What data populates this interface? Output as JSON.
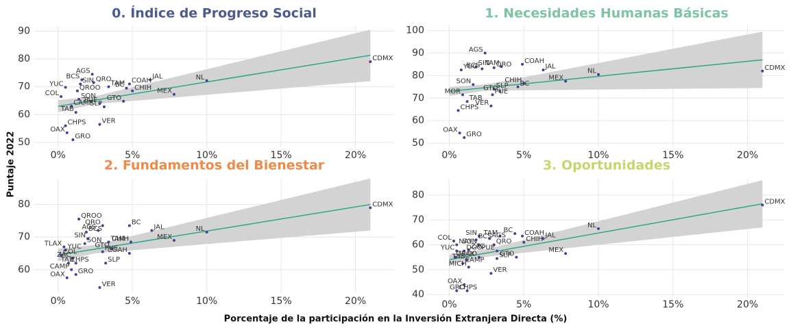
{
  "ylabel": "Puntaje 2022",
  "xlabel": "Porcentaje de la participación en la Inversión Extranjera Directa (%)",
  "chart_data": [
    {
      "type": "scatter",
      "title": "0. Índice de Progreso Social",
      "title_color": "#4b5b8e",
      "color": "#4b3f8f",
      "labels": [
        "CDMX",
        "NL",
        "JAL",
        "MEX",
        "COAH",
        "BC",
        "CHIH",
        "GTO",
        "TAM",
        "SLP",
        "VER",
        "AGS",
        "QRO",
        "BCS",
        "SIN",
        "YUC",
        "QROO",
        "COL",
        "SON",
        "PUE",
        "CAMP",
        "TAB",
        "CHPS",
        "OAX",
        "GRO"
      ],
      "x": [
        21.0,
        10.0,
        6.2,
        7.8,
        4.8,
        4.6,
        5.0,
        4.4,
        3.4,
        3.1,
        2.8,
        2.3,
        2.4,
        1.6,
        1.5,
        0.5,
        1.3,
        0.2,
        1.4,
        2.8,
        0.9,
        1.2,
        0.5,
        0.6,
        1.0
      ],
      "y": [
        79.0,
        72.2,
        72.5,
        67.3,
        71.0,
        69.5,
        68.5,
        64.8,
        70.0,
        62.8,
        56.5,
        74.5,
        71.5,
        72.5,
        71.0,
        69.8,
        68.5,
        66.5,
        65.5,
        64.0,
        63.0,
        60.8,
        56.0,
        53.5,
        51.0
      ],
      "trend": {
        "x": [
          0,
          2.5,
          21
        ],
        "fit": [
          63.0,
          65.2,
          81.3
        ],
        "lower": [
          60.8,
          63.8,
          72.0
        ],
        "upper": [
          65.2,
          66.6,
          90.5
        ],
        "color": "#2ca58d",
        "band_color": "#d3d3d3"
      },
      "xlim": [
        -1.6,
        22.6
      ],
      "ylim": [
        48.3,
        91.8
      ],
      "xticks": [
        {
          "value": 0,
          "label": "0%"
        },
        {
          "value": 5,
          "label": "5%"
        },
        {
          "value": 10,
          "label": "10%"
        },
        {
          "value": 15,
          "label": "15%"
        },
        {
          "value": 20,
          "label": "20%"
        }
      ],
      "yticks": [
        50,
        60,
        70,
        80,
        90
      ],
      "grid": true
    },
    {
      "type": "scatter",
      "title": "1. Necesidades Humanas Básicas",
      "title_color": "#7cc4a4",
      "color": "#4b3f8f",
      "labels": [
        "CDMX",
        "NL",
        "JAL",
        "MEX",
        "COAH",
        "CHIH",
        "BC",
        "TAM",
        "QRO",
        "AGS",
        "SIN",
        "BCS",
        "YUC",
        "SON",
        "SLP",
        "GTO",
        "PUE",
        "MOR",
        "TAB",
        "VER",
        "CHPS",
        "OAX",
        "GRO"
      ],
      "x": [
        21.0,
        10.0,
        6.3,
        7.8,
        4.9,
        5.0,
        4.6,
        3.5,
        3.0,
        2.4,
        1.8,
        2.2,
        0.8,
        1.6,
        3.0,
        3.4,
        2.9,
        0.9,
        1.2,
        2.8,
        0.6,
        0.7,
        1.0
      ],
      "y": [
        82.0,
        80.5,
        82.5,
        77.5,
        85.0,
        76.5,
        75.0,
        84.0,
        83.5,
        90.0,
        84.0,
        83.0,
        82.5,
        76.0,
        74.0,
        73.0,
        71.5,
        71.5,
        68.5,
        66.5,
        64.5,
        54.5,
        52.5
      ],
      "trend": {
        "x": [
          0,
          2.5,
          21
        ],
        "fit": [
          73.0,
          74.7,
          87.0
        ],
        "lower": [
          71.0,
          73.3,
          74.5
        ],
        "upper": [
          75.0,
          76.1,
          99.5
        ],
        "color": "#2ca58d",
        "band_color": "#d3d3d3"
      },
      "xlim": [
        -1.4,
        22.5
      ],
      "ylim": [
        48.2,
        102.0
      ],
      "xticks": [
        {
          "value": 0,
          "label": "0%"
        },
        {
          "value": 5,
          "label": "5%"
        },
        {
          "value": 10,
          "label": "10%"
        },
        {
          "value": 15,
          "label": "15%"
        },
        {
          "value": 20,
          "label": "20%"
        }
      ],
      "yticks": [
        50,
        60,
        70,
        80,
        90,
        100
      ],
      "grid": true
    },
    {
      "type": "scatter",
      "title": "2. Fundamentos del Bienestar",
      "title_color": "#ef8a47",
      "color": "#4b3f8f",
      "labels": [
        "CDMX",
        "NL",
        "JAL",
        "MEX",
        "QROO",
        "QRO",
        "BC",
        "AGS",
        "BCS",
        "SIN",
        "TAM",
        "CHIH",
        "SON",
        "TLAX",
        "YUC",
        "GTO",
        "PUE",
        "COAH",
        "COL",
        "ZAC",
        "CHPS",
        "TAB",
        "SLP",
        "CAMP",
        "GRO",
        "OAX",
        "VER"
      ],
      "x": [
        21.0,
        10.0,
        6.3,
        7.8,
        1.4,
        3.0,
        4.8,
        2.7,
        1.9,
        2.0,
        3.4,
        4.9,
        1.8,
        0.4,
        0.5,
        3.6,
        3.0,
        4.8,
        0.2,
        1.0,
        0.7,
        1.2,
        3.2,
        0.9,
        1.2,
        0.6,
        2.8
      ],
      "y": [
        79.0,
        71.5,
        72.0,
        69.0,
        75.5,
        73.5,
        73.5,
        72.0,
        71.5,
        69.5,
        68.5,
        68.5,
        68.0,
        67.0,
        66.0,
        66.5,
        65.5,
        65.0,
        64.5,
        63.5,
        62.0,
        62.0,
        62.0,
        60.0,
        58.5,
        57.5,
        54.5
      ],
      "trend": {
        "x": [
          0,
          2.5,
          21
        ],
        "fit": [
          64.5,
          66.3,
          80.0
        ],
        "lower": [
          62.6,
          65.0,
          72.0
        ],
        "upper": [
          66.4,
          67.6,
          88.0
        ],
        "color": "#2ca58d",
        "band_color": "#d3d3d3"
      },
      "xlim": [
        -1.6,
        22.6
      ],
      "ylim": [
        52.8,
        87.7
      ],
      "xticks": [
        {
          "value": 0,
          "label": "0%"
        },
        {
          "value": 5,
          "label": "5%"
        },
        {
          "value": 10,
          "label": "10%"
        },
        {
          "value": 15,
          "label": "15%"
        },
        {
          "value": 20,
          "label": "20%"
        }
      ],
      "yticks": [
        60,
        70,
        80
      ],
      "grid": true
    },
    {
      "type": "scatter",
      "title": "3. Oportunidades",
      "title_color": "#c5d66a",
      "color": "#4b3f8f",
      "labels": [
        "CDMX",
        "NL",
        "JAL",
        "MEX",
        "COAH",
        "BC",
        "CHIH",
        "TAM",
        "AGS",
        "SIN",
        "BCS",
        "COL",
        "NAY",
        "SON",
        "QRO",
        "PUE",
        "ZAC",
        "YUC",
        "DGO",
        "GTO",
        "SLP",
        "QROO",
        "TLAX",
        "TAB",
        "CAMP",
        "MICH",
        "VER",
        "OAX",
        "CHPS",
        "GRO"
      ],
      "x": [
        21.0,
        10.0,
        6.3,
        7.8,
        4.9,
        4.4,
        5.0,
        3.4,
        2.7,
        2.0,
        1.8,
        0.3,
        0.5,
        2.0,
        3.0,
        3.2,
        1.3,
        0.5,
        1.0,
        4.5,
        3.2,
        2.0,
        0.4,
        1.2,
        0.9,
        1.3,
        2.8,
        1.0,
        0.5,
        1.2
      ],
      "y": [
        76.0,
        66.5,
        62.5,
        56.5,
        63.5,
        64.5,
        61.0,
        63.5,
        62.5,
        63.5,
        62.0,
        61.5,
        60.0,
        60.0,
        60.0,
        57.5,
        58.0,
        57.5,
        57.5,
        55.0,
        54.5,
        55.0,
        55.0,
        54.0,
        52.5,
        51.0,
        48.5,
        44.0,
        41.5,
        41.5
      ],
      "trend": {
        "x": [
          0,
          2.5,
          21
        ],
        "fit": [
          54.0,
          56.7,
          76.5
        ],
        "lower": [
          52.0,
          55.2,
          67.0
        ],
        "upper": [
          56.0,
          58.2,
          86.0
        ],
        "color": "#2ca58d",
        "band_color": "#d3d3d3"
      },
      "xlim": [
        -1.4,
        22.5
      ],
      "ylim": [
        39.2,
        86.3
      ],
      "xticks": [
        {
          "value": 0,
          "label": "0%"
        },
        {
          "value": 5,
          "label": "5%"
        },
        {
          "value": 10,
          "label": "10%"
        },
        {
          "value": 15,
          "label": "15%"
        },
        {
          "value": 20,
          "label": "20%"
        }
      ],
      "yticks": [
        40,
        50,
        60,
        70,
        80
      ],
      "grid": true
    }
  ]
}
